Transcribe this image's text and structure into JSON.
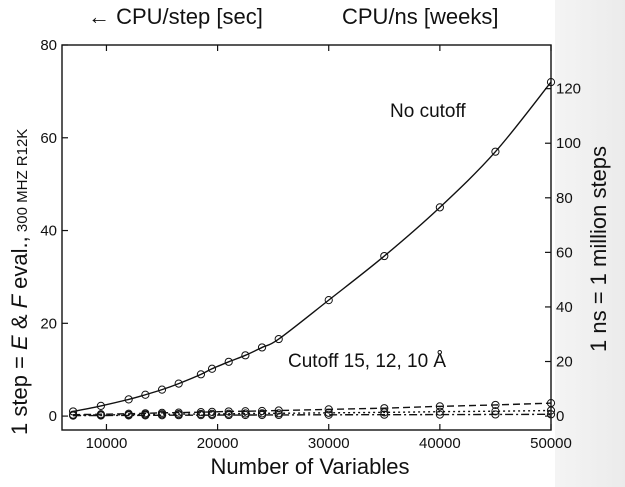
{
  "header": {
    "left_label": "← CPU/step [sec]",
    "right_label": "CPU/ns [weeks]"
  },
  "axes": {
    "xlabel": "Number of Variables",
    "ylabel_left_main": "1 step = ",
    "ylabel_left_e": "E",
    "ylabel_left_amp": " & ",
    "ylabel_left_f": "F",
    "ylabel_left_rest": " eval.,",
    "ylabel_left_small": " 300 MHZ R12K",
    "ylabel_right": "1 ns = 1 million steps"
  },
  "annotations": {
    "no_cutoff": "No cutoff",
    "cutoff": "Cutoff 15, 12, 10 Å"
  },
  "chart_data": {
    "type": "line",
    "xlim": [
      6000,
      50000
    ],
    "ylim": [
      -3,
      80
    ],
    "y2lim": [
      -5.1,
      136
    ],
    "x_ticks": [
      10000,
      20000,
      30000,
      40000,
      50000
    ],
    "y_ticks": [
      0,
      20,
      40,
      60,
      80
    ],
    "y2_ticks": [
      0,
      20,
      40,
      60,
      80,
      100,
      120
    ],
    "series": [
      {
        "name": "No cutoff",
        "style": "solid",
        "x": [
          7000,
          9500,
          12000,
          13500,
          15000,
          16500,
          18500,
          19500,
          21000,
          22500,
          24000,
          25500,
          30000,
          35000,
          40000,
          45000,
          50000
        ],
        "y": [
          1.0,
          2.2,
          3.6,
          4.6,
          5.7,
          7.0,
          9.0,
          10.2,
          11.7,
          13.1,
          14.8,
          16.6,
          25.0,
          34.5,
          45.0,
          57.0,
          72.0
        ]
      },
      {
        "name": "Cutoff 15 Å",
        "style": "dashed",
        "x": [
          7000,
          9500,
          12000,
          13500,
          15000,
          16500,
          18500,
          19500,
          21000,
          22500,
          24000,
          25500,
          30000,
          35000,
          40000,
          45000,
          50000
        ],
        "y": [
          0.3,
          0.4,
          0.5,
          0.6,
          0.7,
          0.75,
          0.85,
          0.9,
          1.0,
          1.05,
          1.1,
          1.2,
          1.45,
          1.7,
          2.1,
          2.4,
          2.8
        ]
      },
      {
        "name": "Cutoff 12 Å",
        "style": "dotted",
        "x": [
          7000,
          9500,
          12000,
          13500,
          15000,
          16500,
          18500,
          19500,
          21000,
          22500,
          24000,
          25500,
          30000,
          35000,
          40000,
          45000,
          50000
        ],
        "y": [
          0.2,
          0.25,
          0.3,
          0.35,
          0.4,
          0.42,
          0.45,
          0.48,
          0.5,
          0.55,
          0.58,
          0.6,
          0.7,
          0.8,
          0.95,
          1.05,
          1.2
        ]
      },
      {
        "name": "Cutoff 10 Å",
        "style": "dashdot",
        "x": [
          7000,
          9500,
          12000,
          13500,
          15000,
          16500,
          18500,
          19500,
          21000,
          22500,
          24000,
          25500,
          30000,
          35000,
          40000,
          45000,
          50000
        ],
        "y": [
          0.1,
          0.12,
          0.15,
          0.16,
          0.18,
          0.19,
          0.2,
          0.21,
          0.22,
          0.23,
          0.24,
          0.25,
          0.28,
          0.3,
          0.32,
          0.35,
          0.38
        ]
      }
    ]
  }
}
